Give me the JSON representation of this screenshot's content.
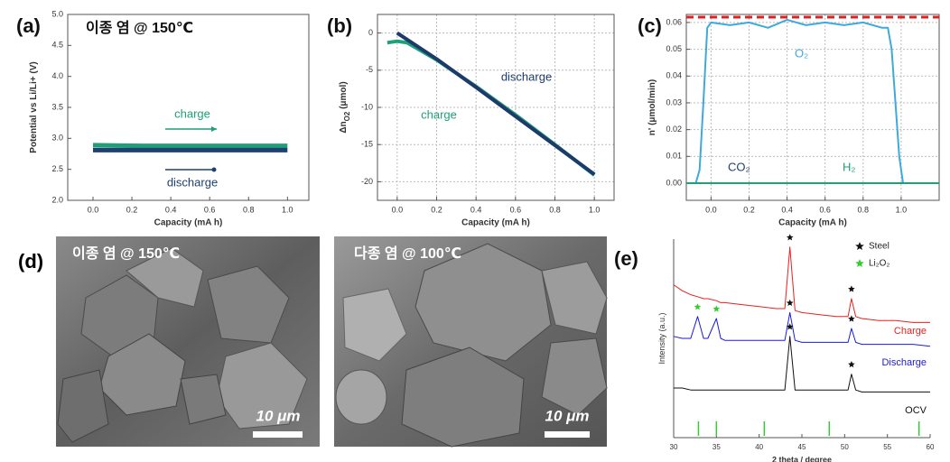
{
  "chart_data": [
    {
      "type": "line",
      "panel": "(a)",
      "title": "이종 염 @ 150℃",
      "frame": "box",
      "grid": false,
      "xlabel": "Capacity (mA h)",
      "ylabel": [
        {
          "text": "Potential vs Li/Li+ (V)"
        }
      ],
      "xlim": [
        -0.13,
        1.11
      ],
      "ylim": [
        2.0,
        5.0
      ],
      "xticks": [
        {
          "value": 0,
          "label": "0.0"
        },
        0.2,
        0.4,
        0.6,
        0.8,
        {
          "value": 1,
          "label": "1.0"
        }
      ],
      "yticks": [
        {
          "value": 2,
          "label": "2.0"
        },
        2.5,
        {
          "value": 3,
          "label": "3.0"
        },
        3.5,
        {
          "value": 4,
          "label": "4.0"
        },
        4.5,
        {
          "value": 5,
          "label": "5.0"
        }
      ],
      "series": [
        {
          "name": "charge",
          "color": "#1f9e78",
          "x": [
            0,
            0.25,
            0.5,
            0.75,
            1
          ],
          "values": [
            2.89,
            2.88,
            2.88,
            2.88,
            2.88
          ]
        },
        {
          "name": "discharge",
          "color": "#1e3f70",
          "x": [
            0,
            0.25,
            0.5,
            0.75,
            1
          ],
          "values": [
            2.81,
            2.81,
            2.81,
            2.81,
            2.81
          ]
        }
      ]
    },
    {
      "type": "line",
      "panel": "(b)",
      "frame": "box",
      "grid": true,
      "xlabel": "Capacity (mA h)",
      "ylabel": [
        {
          "text": "Δn"
        },
        {
          "text": "O2",
          "sub": true
        },
        {
          "text": " (μmol)"
        }
      ],
      "xlim": [
        -0.1,
        1.1
      ],
      "ylim": [
        -22.5,
        2.5
      ],
      "xticks": [
        {
          "value": 0,
          "label": "0.0"
        },
        0.2,
        0.4,
        0.6,
        0.8,
        {
          "value": 1,
          "label": "1.0"
        }
      ],
      "yticks": [
        0,
        -5,
        -10,
        -15,
        -20
      ],
      "series": [
        {
          "name": "charge",
          "color": "#1fa07a",
          "x": [
            -0.05,
            0,
            0.05,
            0.2,
            0.4,
            0.6,
            0.8,
            1.0
          ],
          "values": [
            -1.3,
            -1.1,
            -1.3,
            -3.6,
            -7.2,
            -11.0,
            -15.0,
            -19.1
          ]
        },
        {
          "name": "discharge",
          "color": "#1c3a6a",
          "x": [
            0,
            0.2,
            0.4,
            0.6,
            0.8,
            1.0
          ],
          "values": [
            0,
            -3.5,
            -7.3,
            -11.2,
            -15.1,
            -19.0
          ]
        }
      ]
    },
    {
      "type": "line",
      "panel": "(c)",
      "frame": "box",
      "grid": true,
      "xlabel": "Capacity (mA h)",
      "ylabel": [
        {
          "text": "n' (μmol/min)"
        }
      ],
      "xlim": [
        -0.13,
        1.2
      ],
      "ylim": [
        -0.0064,
        0.063
      ],
      "xticks": [
        {
          "value": 0,
          "label": "0.0"
        },
        0.2,
        0.4,
        0.6,
        0.8,
        {
          "value": 1,
          "label": "1.0"
        }
      ],
      "yticks": [
        {
          "value": 0,
          "label": "0.00"
        },
        {
          "value": 0.01,
          "label": "0.01"
        },
        {
          "value": 0.02,
          "label": "0.02"
        },
        {
          "value": 0.03,
          "label": "0.03"
        },
        {
          "value": 0.04,
          "label": "0.04"
        },
        {
          "value": 0.05,
          "label": "0.05"
        },
        {
          "value": 0.06,
          "label": "0.06"
        }
      ],
      "reference_line": {
        "value": 0.062,
        "color": "#e02020"
      },
      "series": [
        {
          "name": "O₂",
          "color": "#3fa9dc",
          "x": [
            -0.13,
            -0.08,
            -0.06,
            -0.04,
            -0.02,
            0,
            0.1,
            0.2,
            0.3,
            0.4,
            0.5,
            0.6,
            0.7,
            0.8,
            0.9,
            0.93,
            0.95,
            0.97,
            0.99,
            1.01,
            1.1,
            1.2
          ],
          "values": [
            0,
            0,
            0.005,
            0.03,
            0.058,
            0.06,
            0.059,
            0.06,
            0.058,
            0.061,
            0.059,
            0.06,
            0.059,
            0.06,
            0.058,
            0.058,
            0.05,
            0.03,
            0.01,
            0,
            0,
            0
          ]
        },
        {
          "name": "CO₂",
          "color": "#1e3f70",
          "x": [
            -0.13,
            1.2
          ],
          "values": [
            0,
            0
          ]
        },
        {
          "name": "H₂",
          "color": "#1f9e78",
          "x": [
            -0.13,
            1.2
          ],
          "values": [
            0,
            0
          ]
        }
      ]
    },
    {
      "type": "line",
      "panel": "(e)",
      "frame": "axes",
      "grid": false,
      "xlabel": "2 theta / degree",
      "ylabel": [
        {
          "text": "Intensity (a.u.)"
        }
      ],
      "xlim": [
        30,
        60
      ],
      "ylim": [
        0,
        10
      ],
      "xticks": [
        30,
        35,
        40,
        45,
        50,
        55,
        60
      ],
      "x": [
        30,
        31,
        32,
        32.8,
        33.5,
        34,
        35,
        35.5,
        36,
        38,
        40,
        42,
        43,
        43.6,
        44.2,
        45,
        47,
        49,
        50.4,
        50.8,
        51.3,
        52,
        54,
        56,
        58,
        60
      ],
      "series": [
        {
          "name": "Charge",
          "color": "#e8201e",
          "values": [
            7.7,
            7.4,
            7.2,
            7.1,
            7.0,
            7.0,
            6.9,
            6.8,
            6.8,
            6.7,
            6.6,
            6.5,
            6.5,
            9.6,
            6.4,
            6.3,
            6.2,
            6.1,
            6.1,
            7.0,
            6.1,
            6.0,
            5.9,
            5.9,
            5.8,
            5.8
          ]
        },
        {
          "name": "Discharge",
          "color": "#1a1adb",
          "values": [
            5.1,
            5.0,
            5.0,
            6.1,
            5.0,
            5.0,
            6.0,
            5.0,
            4.9,
            4.9,
            4.9,
            4.9,
            4.9,
            6.3,
            4.9,
            4.8,
            4.8,
            4.8,
            4.8,
            5.5,
            4.8,
            4.7,
            4.7,
            4.7,
            4.7,
            4.6
          ]
        },
        {
          "name": "OCV",
          "color": "#111111",
          "values": [
            2.5,
            2.5,
            2.4,
            2.4,
            2.4,
            2.4,
            2.4,
            2.4,
            2.4,
            2.4,
            2.4,
            2.4,
            2.4,
            5.1,
            2.4,
            2.4,
            2.4,
            2.4,
            2.4,
            3.2,
            2.4,
            2.3,
            2.3,
            2.3,
            2.3,
            2.3
          ]
        }
      ],
      "legend": [
        {
          "name": "Steel",
          "color": "#111111"
        },
        {
          "name": "Li₂O₂",
          "color": "#33cc33"
        }
      ],
      "markers": [
        {
          "x": 43.6,
          "y": 9.9,
          "legend": 0
        },
        {
          "x": 50.8,
          "y": 7.3,
          "legend": 0
        },
        {
          "x": 43.6,
          "y": 6.6,
          "legend": 0
        },
        {
          "x": 50.8,
          "y": 5.8,
          "legend": 0
        },
        {
          "x": 43.6,
          "y": 5.4,
          "legend": 0
        },
        {
          "x": 50.8,
          "y": 3.5,
          "legend": 0
        },
        {
          "x": 32.8,
          "y": 6.4,
          "legend": 1
        },
        {
          "x": 35,
          "y": 6.3,
          "legend": 1
        }
      ],
      "reference_peaks": [
        32.9,
        35.0,
        40.6,
        48.2,
        58.7
      ],
      "reference_color": "#33cc33"
    }
  ],
  "images": {
    "label": "(d)",
    "panels": [
      {
        "caption": "이종 염 @ 150℃",
        "scale_bar": "10 μm"
      },
      {
        "caption": "다종 염 @ 100℃",
        "scale_bar": "10 μm"
      }
    ]
  }
}
